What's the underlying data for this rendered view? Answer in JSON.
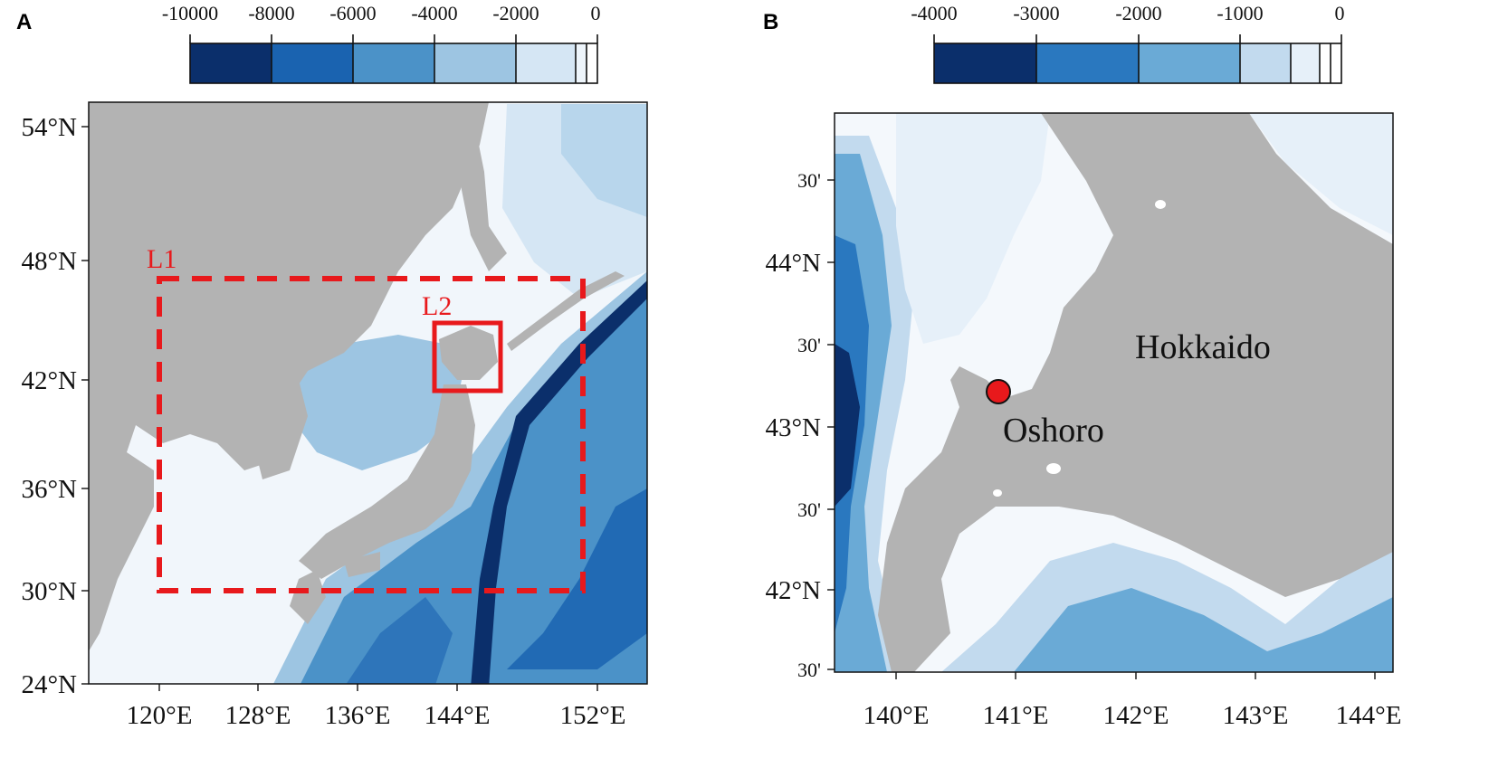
{
  "panels": {
    "a": {
      "letter": "A",
      "colorbar": {
        "labels": [
          "-10000",
          "-8000",
          "-6000",
          "-4000",
          "-2000",
          "0"
        ],
        "colors": [
          "#0b2f6b",
          "#1a63b0",
          "#4b92c8",
          "#9dc5e2",
          "#d5e6f4",
          "#eef5fb",
          "#ffffff"
        ]
      },
      "lat_labels": [
        "54°N",
        "48°N",
        "42°N",
        "36°N",
        "30°N",
        "24°N"
      ],
      "lon_labels": [
        "120°E",
        "128°E",
        "136°E",
        "144°E",
        "152°E"
      ],
      "boxes": [
        {
          "label": "L1",
          "style": "dashed"
        },
        {
          "label": "L2",
          "style": "solid"
        }
      ]
    },
    "b": {
      "letter": "B",
      "colorbar": {
        "labels": [
          "-4000",
          "-3000",
          "-2000",
          "-1000",
          "0"
        ],
        "colors": [
          "#0b2f6b",
          "#2a78bf",
          "#6aaad6",
          "#c2daee",
          "#e6f0f9",
          "#ffffff"
        ]
      },
      "lat_labels": [
        "30'",
        "44°N",
        "30'",
        "43°N",
        "30'",
        "42°N",
        "30'"
      ],
      "lon_labels": [
        "140°E",
        "141°E",
        "142°E",
        "143°E",
        "144°E"
      ],
      "places": [
        {
          "label": "Hokkaido",
          "kind": "region"
        },
        {
          "label": "Oshoro",
          "kind": "station",
          "marker_color": "#e8191c"
        }
      ]
    }
  },
  "colors": {
    "land": "#b3b3b3",
    "shallow": "#f1f6fb",
    "box_red": "#e8191c"
  }
}
